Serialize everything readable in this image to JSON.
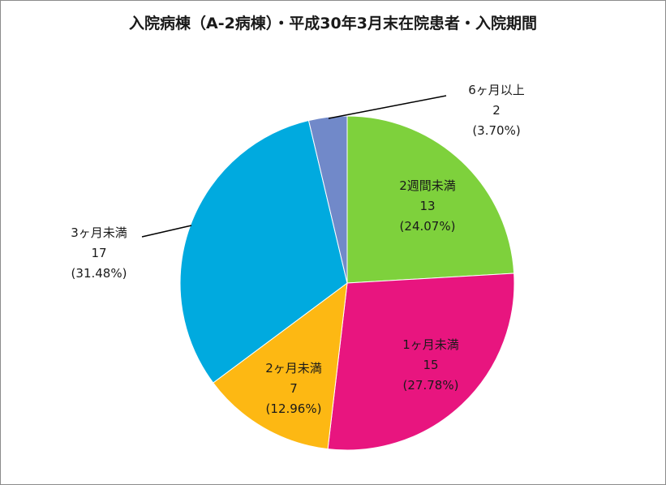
{
  "chart_data": {
    "type": "pie",
    "title": "入院病棟（A-2病棟）・平成30年3月末在院患者・入院期間",
    "slices": [
      {
        "name": "2週間未満",
        "value": 13,
        "label": "13",
        "pct": "(24.07%)",
        "color": "#7ed13c"
      },
      {
        "name": "1ヶ月未満",
        "value": 15,
        "label": "15",
        "pct": "(27.78%)",
        "color": "#e8157f"
      },
      {
        "name": "2ヶ月未満",
        "value": 7,
        "label": "7",
        "pct": "(12.96%)",
        "color": "#fdb813"
      },
      {
        "name": "3ヶ月未満",
        "value": 17,
        "label": "17",
        "pct": "(31.48%)",
        "color": "#00aadf"
      },
      {
        "name": "6ヶ月以上",
        "value": 2,
        "label": "2",
        "pct": "(3.70%)",
        "color": "#7189c9"
      }
    ],
    "start_angle": "12 o'clock",
    "direction": "clockwise",
    "legend": "none"
  }
}
